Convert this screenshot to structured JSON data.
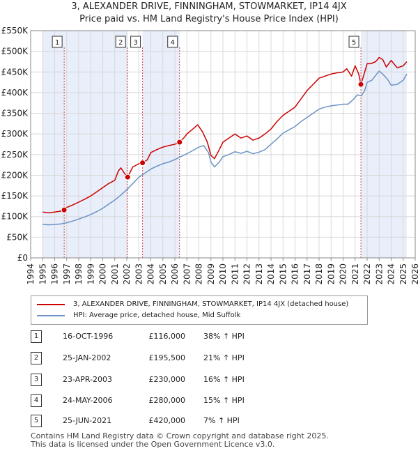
{
  "chart_data": {
    "type": "line",
    "title": "3, ALEXANDER DRIVE, FINNINGHAM, STOWMARKET, IP14 4JX",
    "subtitle": "Price paid vs. HM Land Registry's House Price Index (HPI)",
    "xlabel": "",
    "ylabel": "",
    "xlim": [
      1994,
      2026
    ],
    "ylim": [
      0,
      550000
    ],
    "x_ticks": [
      1994,
      1995,
      1996,
      1997,
      1998,
      1999,
      2000,
      2001,
      2002,
      2003,
      2004,
      2005,
      2006,
      2007,
      2008,
      2009,
      2010,
      2011,
      2012,
      2013,
      2014,
      2015,
      2016,
      2017,
      2018,
      2019,
      2020,
      2021,
      2022,
      2023,
      2024,
      2025,
      2026
    ],
    "y_ticks": [
      {
        "value": 0,
        "label": "£0"
      },
      {
        "value": 50000,
        "label": "£50K"
      },
      {
        "value": 100000,
        "label": "£100K"
      },
      {
        "value": 150000,
        "label": "£150K"
      },
      {
        "value": 200000,
        "label": "£200K"
      },
      {
        "value": 250000,
        "label": "£250K"
      },
      {
        "value": 300000,
        "label": "£300K"
      },
      {
        "value": 350000,
        "label": "£350K"
      },
      {
        "value": 400000,
        "label": "£400K"
      },
      {
        "value": 450000,
        "label": "£450K"
      },
      {
        "value": 500000,
        "label": "£500K"
      },
      {
        "value": 550000,
        "label": "£550K"
      }
    ],
    "grid": true,
    "series": [
      {
        "name": "3, ALEXANDER DRIVE, FINNINGHAM, STOWMARKET, IP14 4JX (detached house)",
        "color": "#cc0000",
        "x": [
          1995.0,
          1995.5,
          1996.0,
          1996.5,
          1996.79,
          1997.0,
          1997.5,
          1998.0,
          1998.5,
          1999.0,
          1999.5,
          2000.0,
          2000.5,
          2001.0,
          2001.3,
          2001.5,
          2001.8,
          2002.07,
          2002.5,
          2003.0,
          2003.31,
          2003.7,
          2004.0,
          2004.5,
          2005.0,
          2005.5,
          2006.0,
          2006.39,
          2006.8,
          2007.0,
          2007.5,
          2007.9,
          2008.3,
          2008.7,
          2009.0,
          2009.3,
          2009.7,
          2010.0,
          2010.5,
          2011.0,
          2011.5,
          2012.0,
          2012.5,
          2013.0,
          2013.5,
          2014.0,
          2014.5,
          2015.0,
          2015.5,
          2016.0,
          2016.5,
          2017.0,
          2017.5,
          2018.0,
          2018.5,
          2019.0,
          2019.5,
          2020.0,
          2020.3,
          2020.7,
          2021.0,
          2021.3,
          2021.48,
          2021.7,
          2022.0,
          2022.3,
          2022.7,
          2023.0,
          2023.3,
          2023.6,
          2024.0,
          2024.5,
          2025.0,
          2025.3
        ],
        "values": [
          111000,
          109000,
          111000,
          113000,
          116000,
          122000,
          128000,
          135000,
          142000,
          150000,
          160000,
          170000,
          180000,
          188000,
          210000,
          218000,
          205000,
          195500,
          220000,
          228000,
          230000,
          237000,
          255000,
          262000,
          268000,
          272000,
          275000,
          280000,
          292000,
          300000,
          312000,
          322000,
          305000,
          280000,
          248000,
          240000,
          262000,
          280000,
          290000,
          300000,
          290000,
          295000,
          285000,
          290000,
          300000,
          312000,
          330000,
          345000,
          355000,
          365000,
          385000,
          405000,
          420000,
          435000,
          440000,
          445000,
          448000,
          450000,
          458000,
          440000,
          465000,
          445000,
          420000,
          440000,
          470000,
          470000,
          475000,
          485000,
          480000,
          462000,
          478000,
          460000,
          465000,
          475000
        ]
      },
      {
        "name": "HPI: Average price, detached house, Mid Suffolk",
        "color": "#6b93c3",
        "x": [
          1995.0,
          1995.5,
          1996.0,
          1996.5,
          1997.0,
          1997.5,
          1998.0,
          1998.5,
          1999.0,
          1999.5,
          2000.0,
          2000.5,
          2001.0,
          2001.5,
          2002.0,
          2002.5,
          2003.0,
          2003.5,
          2004.0,
          2004.5,
          2005.0,
          2005.5,
          2006.0,
          2006.5,
          2007.0,
          2007.5,
          2008.0,
          2008.4,
          2008.8,
          2009.0,
          2009.3,
          2009.7,
          2010.0,
          2010.5,
          2011.0,
          2011.5,
          2012.0,
          2012.5,
          2013.0,
          2013.5,
          2014.0,
          2014.5,
          2015.0,
          2015.5,
          2016.0,
          2016.5,
          2017.0,
          2017.5,
          2018.0,
          2018.5,
          2019.0,
          2019.5,
          2020.0,
          2020.4,
          2020.8,
          2021.2,
          2021.5,
          2021.8,
          2022.0,
          2022.4,
          2022.8,
          2023.0,
          2023.3,
          2023.7,
          2024.0,
          2024.5,
          2025.0,
          2025.3
        ],
        "values": [
          81000,
          80000,
          81000,
          82000,
          85000,
          89000,
          94000,
          99000,
          105000,
          112000,
          120000,
          130000,
          140000,
          152000,
          165000,
          180000,
          195000,
          205000,
          215000,
          222000,
          228000,
          232000,
          238000,
          245000,
          252000,
          260000,
          268000,
          272000,
          255000,
          232000,
          220000,
          232000,
          245000,
          250000,
          257000,
          253000,
          258000,
          252000,
          256000,
          262000,
          275000,
          288000,
          302000,
          310000,
          318000,
          330000,
          340000,
          350000,
          360000,
          365000,
          368000,
          370000,
          372000,
          372000,
          382000,
          395000,
          392000,
          405000,
          425000,
          430000,
          445000,
          452000,
          445000,
          432000,
          418000,
          420000,
          430000,
          445000
        ]
      }
    ],
    "sales": [
      {
        "num": "1",
        "x": 1996.79,
        "price": 116000
      },
      {
        "num": "2",
        "x": 2002.07,
        "price": 195500
      },
      {
        "num": "3",
        "x": 2003.31,
        "price": 230000
      },
      {
        "num": "4",
        "x": 2006.39,
        "price": 280000
      },
      {
        "num": "5",
        "x": 2021.48,
        "price": 420000
      }
    ],
    "shade_regions": [
      [
        1995.0,
        1996.79
      ],
      [
        1996.79,
        2002.07
      ],
      [
        2003.31,
        2006.39
      ],
      [
        2021.48,
        2025.3
      ]
    ]
  },
  "legend": {
    "property_label": "3, ALEXANDER DRIVE, FINNINGHAM, STOWMARKET, IP14 4JX (detached house)",
    "hpi_label": "HPI: Average price, detached house, Mid Suffolk"
  },
  "transactions": [
    {
      "num": "1",
      "date": "16-OCT-1996",
      "price": "£116,000",
      "hpi": "38% ↑ HPI"
    },
    {
      "num": "2",
      "date": "25-JAN-2002",
      "price": "£195,500",
      "hpi": "21% ↑ HPI"
    },
    {
      "num": "3",
      "date": "23-APR-2003",
      "price": "£230,000",
      "hpi": "16% ↑ HPI"
    },
    {
      "num": "4",
      "date": "24-MAY-2006",
      "price": "£280,000",
      "hpi": "15% ↑ HPI"
    },
    {
      "num": "5",
      "date": "25-JUN-2021",
      "price": "£420,000",
      "hpi": "7% ↑ HPI"
    }
  ],
  "footer": {
    "line1": "Contains HM Land Registry data © Crown copyright and database right 2025.",
    "line2": "This data is licensed under the Open Government Licence v3.0."
  }
}
